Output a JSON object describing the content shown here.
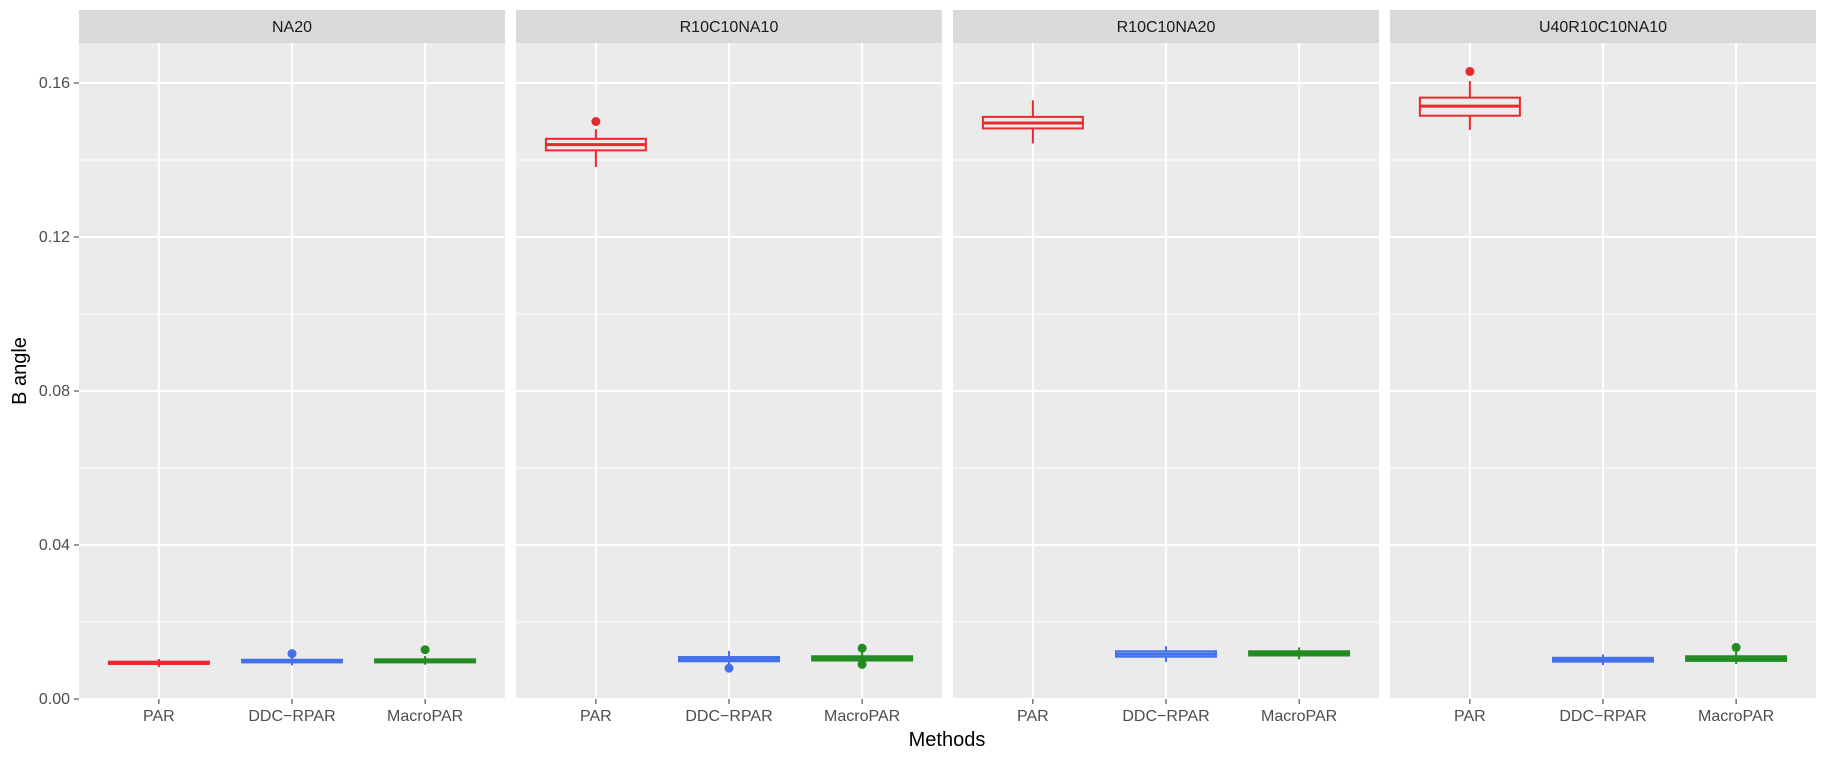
{
  "chart_data": {
    "type": "boxplot",
    "xlabel": "Methods",
    "ylabel": "B angle",
    "ylim": [
      0,
      0.174
    ],
    "yticks": [
      0.0,
      0.04,
      0.08,
      0.12,
      0.16
    ],
    "ytick_labels": [
      "0.00",
      "0.04",
      "0.08",
      "0.12",
      "0.16"
    ],
    "categories": [
      "PAR",
      "DDC−RPAR",
      "MacroPAR"
    ],
    "grid": true,
    "legend": "none",
    "colors": {
      "PAR": "#e8292d",
      "DDC−RPAR": "#4470e8",
      "MacroPAR": "#228b22"
    },
    "panels": [
      {
        "title": "NA20",
        "boxes": [
          {
            "method": "PAR",
            "q1": 0.0091,
            "median": 0.0094,
            "q3": 0.0097,
            "whisker_low": 0.0083,
            "whisker_high": 0.0104,
            "outliers": []
          },
          {
            "method": "DDC−RPAR",
            "q1": 0.0095,
            "median": 0.0098,
            "q3": 0.0102,
            "whisker_low": 0.0087,
            "whisker_high": 0.011,
            "outliers": [
              0.0118
            ]
          },
          {
            "method": "MacroPAR",
            "q1": 0.0095,
            "median": 0.0099,
            "q3": 0.0103,
            "whisker_low": 0.0089,
            "whisker_high": 0.0112,
            "outliers": [
              0.0128
            ]
          }
        ]
      },
      {
        "title": "R10C10NA10",
        "boxes": [
          {
            "method": "PAR",
            "q1": 0.1425,
            "median": 0.144,
            "q3": 0.1455,
            "whisker_low": 0.1382,
            "whisker_high": 0.148,
            "outliers": [
              0.15
            ]
          },
          {
            "method": "DDC−RPAR",
            "q1": 0.0098,
            "median": 0.0104,
            "q3": 0.0109,
            "whisker_low": 0.0088,
            "whisker_high": 0.0125,
            "outliers": [
              0.008
            ]
          },
          {
            "method": "MacroPAR",
            "q1": 0.01,
            "median": 0.0106,
            "q3": 0.0111,
            "whisker_low": 0.0092,
            "whisker_high": 0.0121,
            "outliers": [
              0.0132,
              0.009
            ]
          }
        ]
      },
      {
        "title": "R10C10NA20",
        "boxes": [
          {
            "method": "PAR",
            "q1": 0.1482,
            "median": 0.1496,
            "q3": 0.1512,
            "whisker_low": 0.1443,
            "whisker_high": 0.1555,
            "outliers": []
          },
          {
            "method": "DDC−RPAR",
            "q1": 0.011,
            "median": 0.0117,
            "q3": 0.0124,
            "whisker_low": 0.0096,
            "whisker_high": 0.0137,
            "outliers": []
          },
          {
            "method": "MacroPAR",
            "q1": 0.0113,
            "median": 0.0119,
            "q3": 0.0124,
            "whisker_low": 0.0103,
            "whisker_high": 0.0134,
            "outliers": []
          }
        ]
      },
      {
        "title": "U40R10C10NA10",
        "boxes": [
          {
            "method": "PAR",
            "q1": 0.1515,
            "median": 0.154,
            "q3": 0.1562,
            "whisker_low": 0.1478,
            "whisker_high": 0.1605,
            "outliers": [
              0.163
            ]
          },
          {
            "method": "DDC−RPAR",
            "q1": 0.0097,
            "median": 0.0102,
            "q3": 0.0107,
            "whisker_low": 0.0088,
            "whisker_high": 0.0116,
            "outliers": []
          },
          {
            "method": "MacroPAR",
            "q1": 0.0099,
            "median": 0.0105,
            "q3": 0.0111,
            "whisker_low": 0.0091,
            "whisker_high": 0.0123,
            "outliers": [
              0.0134
            ]
          }
        ]
      }
    ]
  }
}
